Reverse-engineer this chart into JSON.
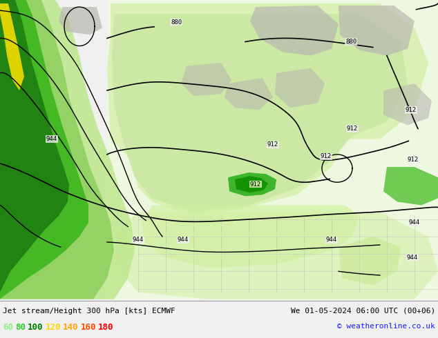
{
  "title_left": "Jet stream/Height 300 hPa [kts] ECMWF",
  "title_right": "We 01-05-2024 06:00 UTC (00+06)",
  "copyright": "© weatheronline.co.uk",
  "legend_values": [
    60,
    80,
    100,
    120,
    140,
    160,
    180
  ],
  "legend_colors": [
    "#90ee90",
    "#32cd32",
    "#008000",
    "#ffd700",
    "#ffa500",
    "#ff4500",
    "#ff0000"
  ],
  "bg_color": "#f0f0f0",
  "map_bg": "#f0f0f0",
  "land_light": "#e8f5d0",
  "land_medium": "#c8e8a0",
  "jet_light": "#b0e890",
  "jet_medium": "#78d050",
  "jet_dark": "#30a020",
  "jet_darkest": "#008000",
  "jet_yellow": "#e8d800",
  "gray": "#c0c0b8",
  "contour_color": "#000000",
  "figwidth": 6.34,
  "figheight": 4.9,
  "dpi": 100
}
